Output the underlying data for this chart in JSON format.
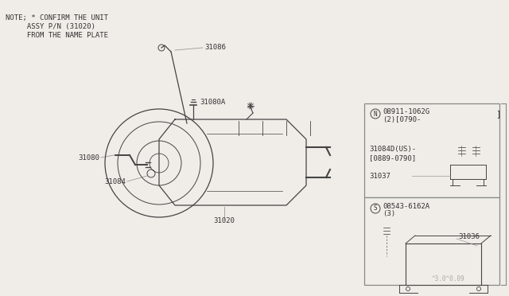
{
  "bg_color": "#f0ede8",
  "line_color": "#999999",
  "dark_line": "#444444",
  "note_line1": "NOTE;",
  "note_sym": "*",
  "note_text1": " CONFIRM THE UNIT",
  "note_text2": "     ASSY P/N (31020)",
  "note_text3": "     FROM THE NAME PLATE",
  "part_31020": "31020",
  "part_31080": "31080",
  "part_31080A": "31080A",
  "part_31084": "31084",
  "part_31086": "31086",
  "part_N_label": "N",
  "part_N_num": "08911-1062G",
  "part_N_sub": "(2)[0790-",
  "part_N_bracket": "]",
  "part_31084D": "31084D(US)-",
  "part_31084D_sub": "[0889-0790]",
  "part_31037": "31037",
  "part_S_label": "S",
  "part_S_num": "08543-6162A",
  "part_S_sub": "(3)",
  "part_31036": "31036",
  "watermark": "^3.0^0.09"
}
